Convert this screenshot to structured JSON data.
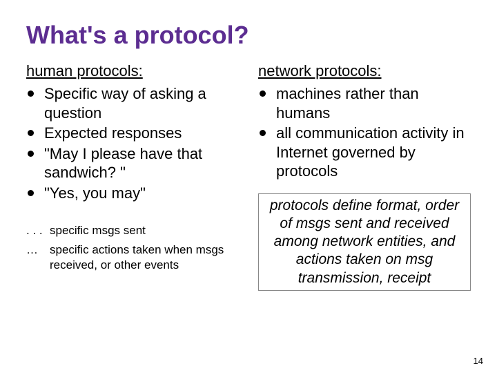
{
  "title": "What's a protocol?",
  "left": {
    "heading": "human protocols:",
    "items": [
      "Specific way of asking a question",
      "Expected responses",
      "\"May I please have that sandwich? \"",
      "\"Yes, you may\""
    ],
    "ellipsis": [
      "specific msgs sent",
      "specific actions taken when msgs received, or other events"
    ]
  },
  "right": {
    "heading": "network protocols:",
    "items": [
      "machines rather than humans",
      "all communication activity in Internet governed by protocols"
    ],
    "callout": "protocols define format, order of msgs sent and received among network entities, and actions taken on msg transmission, receipt"
  },
  "colors": {
    "title": "#5c2d91",
    "text": "#000000",
    "background": "#ffffff"
  },
  "page_number": "14",
  "ellipsis_symbol": ". . ."
}
